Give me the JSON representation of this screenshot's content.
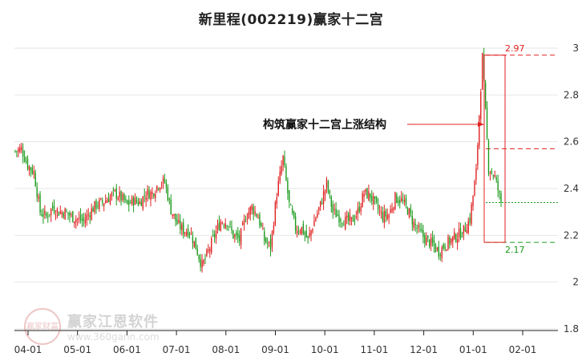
{
  "title": "新里程(002219)赢家十二宫",
  "annotation": "构筑赢家十二宫上涨结构",
  "watermark": {
    "seal": "赢家财富",
    "name": "赢家江恩软件",
    "url": "www.360gann.com"
  },
  "colors": {
    "up": "#e02020",
    "down": "#1a9a1a",
    "box": "#e02020",
    "grid": "#e6e6e6",
    "axis": "#222222"
  },
  "chart_data": {
    "type": "candlestick",
    "ylim": [
      1.8,
      3.0
    ],
    "yticks": [
      {
        "value": 3.0,
        "label": "3"
      },
      {
        "value": 2.8,
        "label": "2.8"
      },
      {
        "value": 2.6,
        "label": "2.6"
      },
      {
        "value": 2.4,
        "label": "2.4"
      },
      {
        "value": 2.2,
        "label": "2.2"
      },
      {
        "value": 2.0,
        "label": "2"
      },
      {
        "value": 1.8,
        "label": "1.8"
      }
    ],
    "xticks": [
      "04-01",
      "05-01",
      "06-01",
      "07-01",
      "08-01",
      "09-01",
      "10-01",
      "11-01",
      "12-01",
      "01-01",
      "02-01"
    ],
    "levels": [
      {
        "value": 2.97,
        "label": "2.97",
        "style": "dashed",
        "color": "#e02020"
      },
      {
        "value": 2.57,
        "label": "",
        "style": "dashed",
        "color": "#e02020"
      },
      {
        "value": 2.34,
        "label": "",
        "style": "dotted",
        "color": "#1a9a1a"
      },
      {
        "value": 2.17,
        "label": "2.17",
        "style": "dashed",
        "color": "#1a9a1a"
      }
    ],
    "box": {
      "top": 2.97,
      "bottom": 2.17
    },
    "path": [
      [
        0,
        2.56
      ],
      [
        4,
        2.57
      ],
      [
        8,
        2.5
      ],
      [
        12,
        2.47
      ],
      [
        16,
        2.3
      ],
      [
        20,
        2.28
      ],
      [
        24,
        2.32
      ],
      [
        28,
        2.3
      ],
      [
        32,
        2.3
      ],
      [
        36,
        2.28
      ],
      [
        40,
        2.27
      ],
      [
        44,
        2.26
      ],
      [
        48,
        2.3
      ],
      [
        52,
        2.33
      ],
      [
        56,
        2.34
      ],
      [
        60,
        2.36
      ],
      [
        64,
        2.38
      ],
      [
        68,
        2.36
      ],
      [
        72,
        2.33
      ],
      [
        76,
        2.35
      ],
      [
        80,
        2.34
      ],
      [
        84,
        2.38
      ],
      [
        88,
        2.38
      ],
      [
        92,
        2.42
      ],
      [
        96,
        2.43
      ],
      [
        100,
        2.31
      ],
      [
        104,
        2.25
      ],
      [
        108,
        2.22
      ],
      [
        112,
        2.22
      ],
      [
        116,
        2.15
      ],
      [
        120,
        2.07
      ],
      [
        124,
        2.13
      ],
      [
        128,
        2.2
      ],
      [
        132,
        2.26
      ],
      [
        136,
        2.26
      ],
      [
        140,
        2.2
      ],
      [
        144,
        2.18
      ],
      [
        148,
        2.28
      ],
      [
        152,
        2.32
      ],
      [
        156,
        2.28
      ],
      [
        160,
        2.18
      ],
      [
        164,
        2.15
      ],
      [
        168,
        2.38
      ],
      [
        172,
        2.53
      ],
      [
        176,
        2.33
      ],
      [
        180,
        2.23
      ],
      [
        184,
        2.23
      ],
      [
        188,
        2.18
      ],
      [
        192,
        2.26
      ],
      [
        196,
        2.33
      ],
      [
        200,
        2.42
      ],
      [
        204,
        2.3
      ],
      [
        208,
        2.28
      ],
      [
        212,
        2.26
      ],
      [
        216,
        2.26
      ],
      [
        220,
        2.3
      ],
      [
        224,
        2.38
      ],
      [
        228,
        2.37
      ],
      [
        232,
        2.32
      ],
      [
        236,
        2.28
      ],
      [
        240,
        2.29
      ],
      [
        244,
        2.36
      ],
      [
        248,
        2.35
      ],
      [
        252,
        2.31
      ],
      [
        256,
        2.25
      ],
      [
        260,
        2.21
      ],
      [
        264,
        2.18
      ],
      [
        268,
        2.16
      ],
      [
        272,
        2.13
      ],
      [
        276,
        2.16
      ],
      [
        280,
        2.18
      ],
      [
        284,
        2.2
      ],
      [
        288,
        2.22
      ],
      [
        292,
        2.27
      ],
      [
        296,
        2.47
      ],
      [
        300,
        2.96
      ],
      [
        304,
        2.49
      ],
      [
        308,
        2.45
      ],
      [
        312,
        2.34
      ]
    ]
  }
}
